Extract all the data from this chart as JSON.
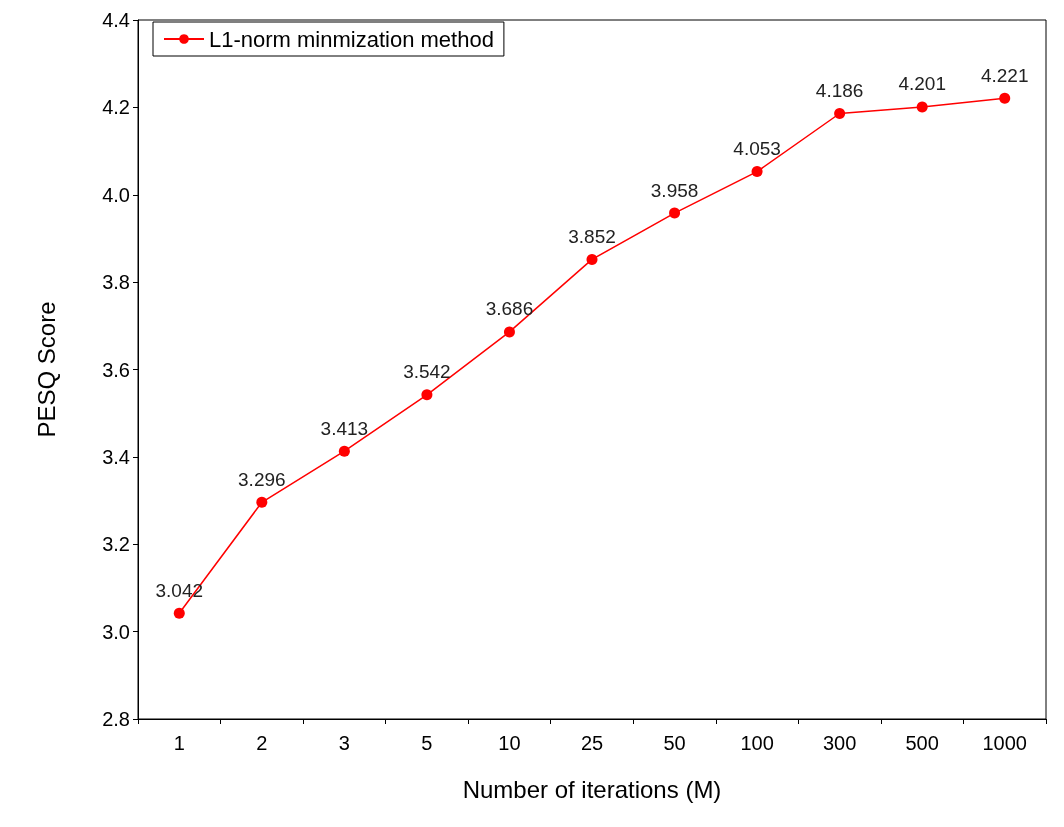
{
  "chart_data": {
    "type": "line",
    "xlabel": "Number of iterations (M)",
    "ylabel": "PESQ Score",
    "categories": [
      "1",
      "2",
      "3",
      "5",
      "10",
      "25",
      "50",
      "100",
      "300",
      "500",
      "1000"
    ],
    "series": [
      {
        "name": "L1-norm minmization method",
        "color": "#ff0000",
        "values": [
          3.042,
          3.296,
          3.413,
          3.542,
          3.686,
          3.852,
          3.958,
          4.053,
          4.186,
          4.201,
          4.221
        ]
      }
    ],
    "ylim": [
      2.8,
      4.4
    ],
    "yticks": [
      {
        "value": 2.8,
        "label": "2.8"
      },
      {
        "value": 3.0,
        "label": "3.0"
      },
      {
        "value": 3.2,
        "label": "3.2"
      },
      {
        "value": 3.4,
        "label": "3.4"
      },
      {
        "value": 3.6,
        "label": "3.6"
      },
      {
        "value": 3.8,
        "label": "3.8"
      },
      {
        "value": 4.0,
        "label": "4.0"
      },
      {
        "value": 4.2,
        "label": "4.2"
      },
      {
        "value": 4.4,
        "label": "4.4"
      }
    ],
    "data_labels": true,
    "legend": "top left",
    "marker": "circle",
    "line_style": "solid",
    "grid": false
  }
}
